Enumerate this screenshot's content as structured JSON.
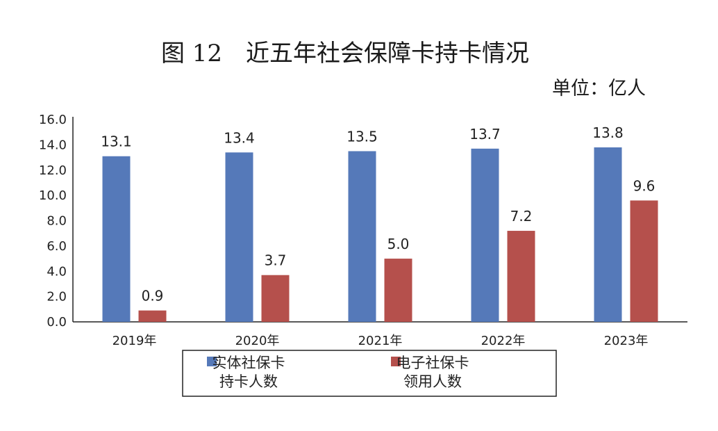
{
  "title": "图 12　近五年社会保障卡持卡情况",
  "unit": "单位：亿人",
  "chart_data": {
    "type": "bar",
    "title": "图 12　近五年社会保障卡持卡情况",
    "categories": [
      "2019年",
      "2020年",
      "2021年",
      "2022年",
      "2023年"
    ],
    "series": [
      {
        "name": "实体社保卡持卡人数",
        "name_lines": [
          "实体社保卡",
          "持卡人数"
        ],
        "color": "#5579b9",
        "values": [
          13.1,
          13.4,
          13.5,
          13.7,
          13.8
        ]
      },
      {
        "name": "电子社保卡领用人数",
        "name_lines": [
          "电子社保卡",
          "领用人数"
        ],
        "color": "#b5504c",
        "values": [
          0.9,
          3.7,
          5.0,
          7.2,
          9.6
        ]
      }
    ],
    "ylim": [
      0,
      16
    ],
    "yticks": [
      "0.0",
      "2.0",
      "4.0",
      "6.0",
      "8.0",
      "10.0",
      "12.0",
      "14.0",
      "16.0"
    ],
    "xlabel": "",
    "ylabel": "",
    "grid": false,
    "legend": "bottom"
  }
}
